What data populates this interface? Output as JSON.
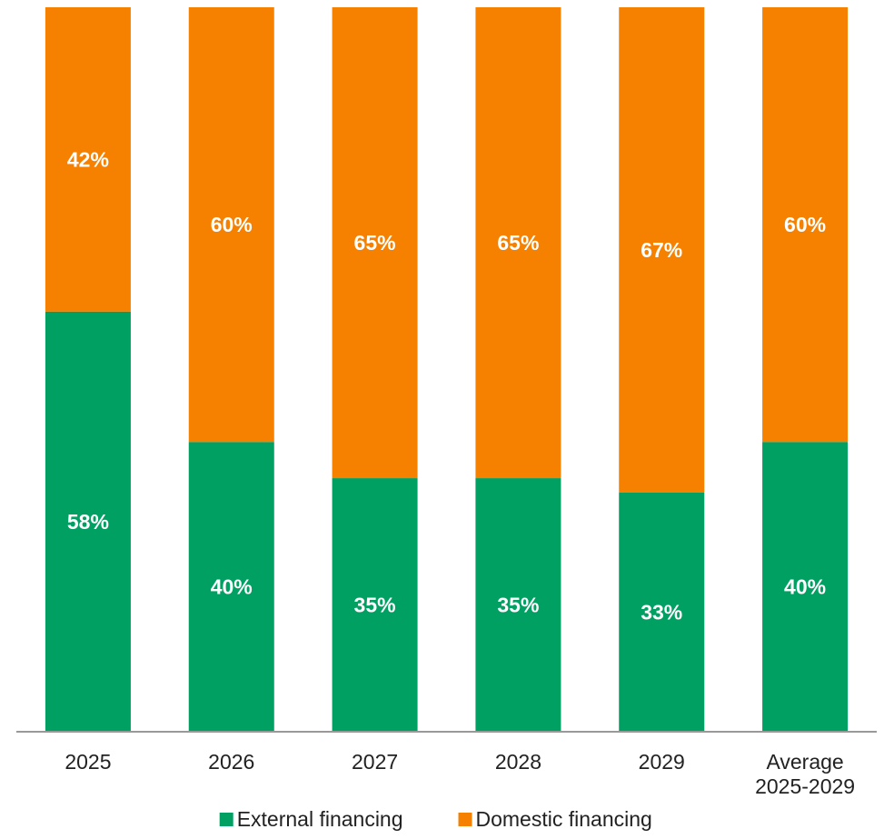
{
  "chart_data": {
    "type": "bar",
    "stacked": true,
    "percent_stacked": true,
    "categories": [
      "2025",
      "2026",
      "2027",
      "2028",
      "2029",
      "Average\n2025-2029"
    ],
    "series": [
      {
        "name": "External financing",
        "color": "#00A062",
        "values": [
          58,
          40,
          35,
          35,
          33,
          40
        ],
        "labels": [
          "58%",
          "40%",
          "35%",
          "35%",
          "33%",
          "40%"
        ]
      },
      {
        "name": "Domestic financing",
        "color": "#F68100",
        "values": [
          42,
          60,
          65,
          65,
          67,
          60
        ],
        "labels": [
          "42%",
          "60%",
          "65%",
          "65%",
          "67%",
          "60%"
        ]
      }
    ],
    "ylim": [
      0,
      100
    ],
    "grid": false,
    "legend_position": "bottom",
    "axis_color": "#999999"
  }
}
